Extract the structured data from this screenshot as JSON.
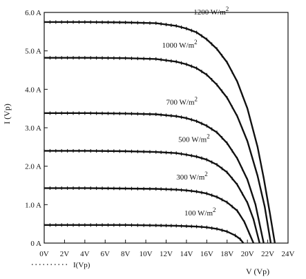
{
  "chart_data": {
    "type": "line",
    "ylabel": "I  (Vp)",
    "xlabel": "V (Vp)",
    "legend_label": "I(Vp)",
    "legend_position": "bottom-left",
    "grid": false,
    "xlim": [
      0,
      24
    ],
    "ylim": [
      0,
      6
    ],
    "x_ticks": [
      "0V",
      "2V",
      "4V",
      "6V",
      "8V",
      "10V",
      "12V",
      "14V",
      "16V",
      "18V",
      "20V",
      "22V",
      "24V"
    ],
    "x_tick_values": [
      0,
      2,
      4,
      6,
      8,
      10,
      12,
      14,
      16,
      18,
      20,
      22,
      24
    ],
    "y_ticks": [
      "0 A",
      "1.0 A",
      "2.0 A",
      "3.0 A",
      "4.0 A",
      "5.0 A",
      "6.0 A"
    ],
    "y_tick_values": [
      0,
      1,
      2,
      3,
      4,
      5,
      6
    ],
    "series": [
      {
        "name": "1200 W/m2",
        "label_main": "1200 W/m",
        "label_sup": "2",
        "isc": 5.75,
        "points": [
          [
            0,
            5.75
          ],
          [
            4,
            5.75
          ],
          [
            8,
            5.74
          ],
          [
            11,
            5.72
          ],
          [
            13,
            5.65
          ],
          [
            14,
            5.58
          ],
          [
            15,
            5.48
          ],
          [
            16,
            5.3
          ],
          [
            17,
            5.05
          ],
          [
            18,
            4.7
          ],
          [
            19,
            4.2
          ],
          [
            20,
            3.5
          ],
          [
            21,
            2.5
          ],
          [
            21.6,
            1.7
          ],
          [
            22.2,
            0.8
          ],
          [
            22.7,
            0
          ]
        ],
        "label_x": 14.7,
        "label_y": 5.95
      },
      {
        "name": "1000 W/m2",
        "label_main": "1000 W/m",
        "label_sup": "2",
        "isc": 4.82,
        "points": [
          [
            0,
            4.82
          ],
          [
            4,
            4.82
          ],
          [
            8,
            4.81
          ],
          [
            11,
            4.79
          ],
          [
            13,
            4.72
          ],
          [
            14,
            4.65
          ],
          [
            15,
            4.55
          ],
          [
            16,
            4.38
          ],
          [
            17,
            4.12
          ],
          [
            18,
            3.78
          ],
          [
            19,
            3.3
          ],
          [
            20,
            2.65
          ],
          [
            21,
            1.75
          ],
          [
            21.7,
            0.95
          ],
          [
            22.3,
            0
          ]
        ],
        "label_x": 11.6,
        "label_y": 5.08
      },
      {
        "name": "700 W/m2",
        "label_main": "700 W/m",
        "label_sup": "2",
        "isc": 3.38,
        "points": [
          [
            0,
            3.38
          ],
          [
            4,
            3.38
          ],
          [
            8,
            3.37
          ],
          [
            11,
            3.35
          ],
          [
            13,
            3.3
          ],
          [
            14,
            3.25
          ],
          [
            15,
            3.17
          ],
          [
            16,
            3.05
          ],
          [
            17,
            2.88
          ],
          [
            18,
            2.6
          ],
          [
            19,
            2.2
          ],
          [
            20,
            1.65
          ],
          [
            20.8,
            1.0
          ],
          [
            21.6,
            0
          ]
        ],
        "label_x": 12.0,
        "label_y": 3.6
      },
      {
        "name": "500 W/m2",
        "label_main": "500 W/m",
        "label_sup": "2",
        "isc": 2.4,
        "points": [
          [
            0,
            2.4
          ],
          [
            4,
            2.4
          ],
          [
            8,
            2.39
          ],
          [
            11,
            2.37
          ],
          [
            13,
            2.34
          ],
          [
            14,
            2.3
          ],
          [
            15,
            2.25
          ],
          [
            16,
            2.17
          ],
          [
            17,
            2.04
          ],
          [
            18,
            1.84
          ],
          [
            19,
            1.52
          ],
          [
            20,
            1.05
          ],
          [
            20.6,
            0.62
          ],
          [
            21.2,
            0
          ]
        ],
        "label_x": 13.2,
        "label_y": 2.63
      },
      {
        "name": "300 W/m2",
        "label_main": "300 W/m",
        "label_sup": "2",
        "isc": 1.43,
        "points": [
          [
            0,
            1.43
          ],
          [
            4,
            1.43
          ],
          [
            8,
            1.42
          ],
          [
            11,
            1.41
          ],
          [
            13,
            1.39
          ],
          [
            14,
            1.37
          ],
          [
            15,
            1.34
          ],
          [
            16,
            1.29
          ],
          [
            17,
            1.2
          ],
          [
            18,
            1.06
          ],
          [
            19,
            0.84
          ],
          [
            19.7,
            0.55
          ],
          [
            20.6,
            0
          ]
        ],
        "label_x": 13.0,
        "label_y": 1.65
      },
      {
        "name": "100 W/m2",
        "label_main": "100 W/m",
        "label_sup": "2",
        "isc": 0.47,
        "points": [
          [
            0,
            0.47
          ],
          [
            4,
            0.47
          ],
          [
            8,
            0.47
          ],
          [
            11,
            0.46
          ],
          [
            13,
            0.45
          ],
          [
            14,
            0.44
          ],
          [
            15,
            0.43
          ],
          [
            16,
            0.41
          ],
          [
            17,
            0.37
          ],
          [
            18,
            0.3
          ],
          [
            18.8,
            0.2
          ],
          [
            19.3,
            0.1
          ],
          [
            19.6,
            0
          ]
        ],
        "label_x": 13.8,
        "label_y": 0.72
      }
    ]
  }
}
